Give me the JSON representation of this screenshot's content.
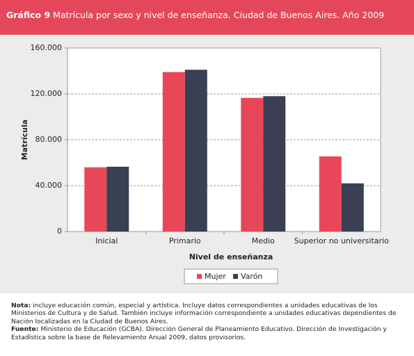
{
  "chart_data": {
    "type": "bar",
    "title_label": "Gráfico 9",
    "title": "Matrícula por sexo y nivel de enseñanza. Ciudad de Buenos Aires. Año 2009",
    "y_label": "Matrícula",
    "x_label": "Nivel de enseñanza",
    "categories": [
      "Inicial",
      "Primario",
      "Medio",
      "Superior no universitario"
    ],
    "series": [
      {
        "name": "Mujer",
        "color": "#e8475a",
        "values": [
          56000,
          139000,
          116500,
          65500
        ]
      },
      {
        "name": "Varón",
        "color": "#3b3f54",
        "values": [
          56500,
          141000,
          118000,
          42000
        ]
      }
    ],
    "ylim": [
      0,
      160000
    ],
    "yticks": [
      0,
      {
        "value": 40000,
        "label": "40.000"
      },
      {
        "value": 80000,
        "label": "80.000"
      },
      {
        "value": 120000,
        "label": "120.000"
      },
      {
        "value": 160000,
        "label": "160.000"
      }
    ],
    "grid": true,
    "legend": "bottom"
  },
  "notes": {
    "note_label": "Nota:",
    "note_text": "incluye educación común, especial y artística. Incluye datos correspondientes a unidades educativas de los Ministerios de Cultura y de Salud. También incluye información correspondiente a unidades educativas dependientes de Nación localizadas en la Ciudad de Buenos Aires.",
    "source_label": "Fuente:",
    "source_text": "Ministerio de Educación (GCBA). Dirección General de Planeamiento Educativo. Dirección de Investigación y Estadística sobre la base de Relevamiento Anual 2009, datos provisorios."
  }
}
